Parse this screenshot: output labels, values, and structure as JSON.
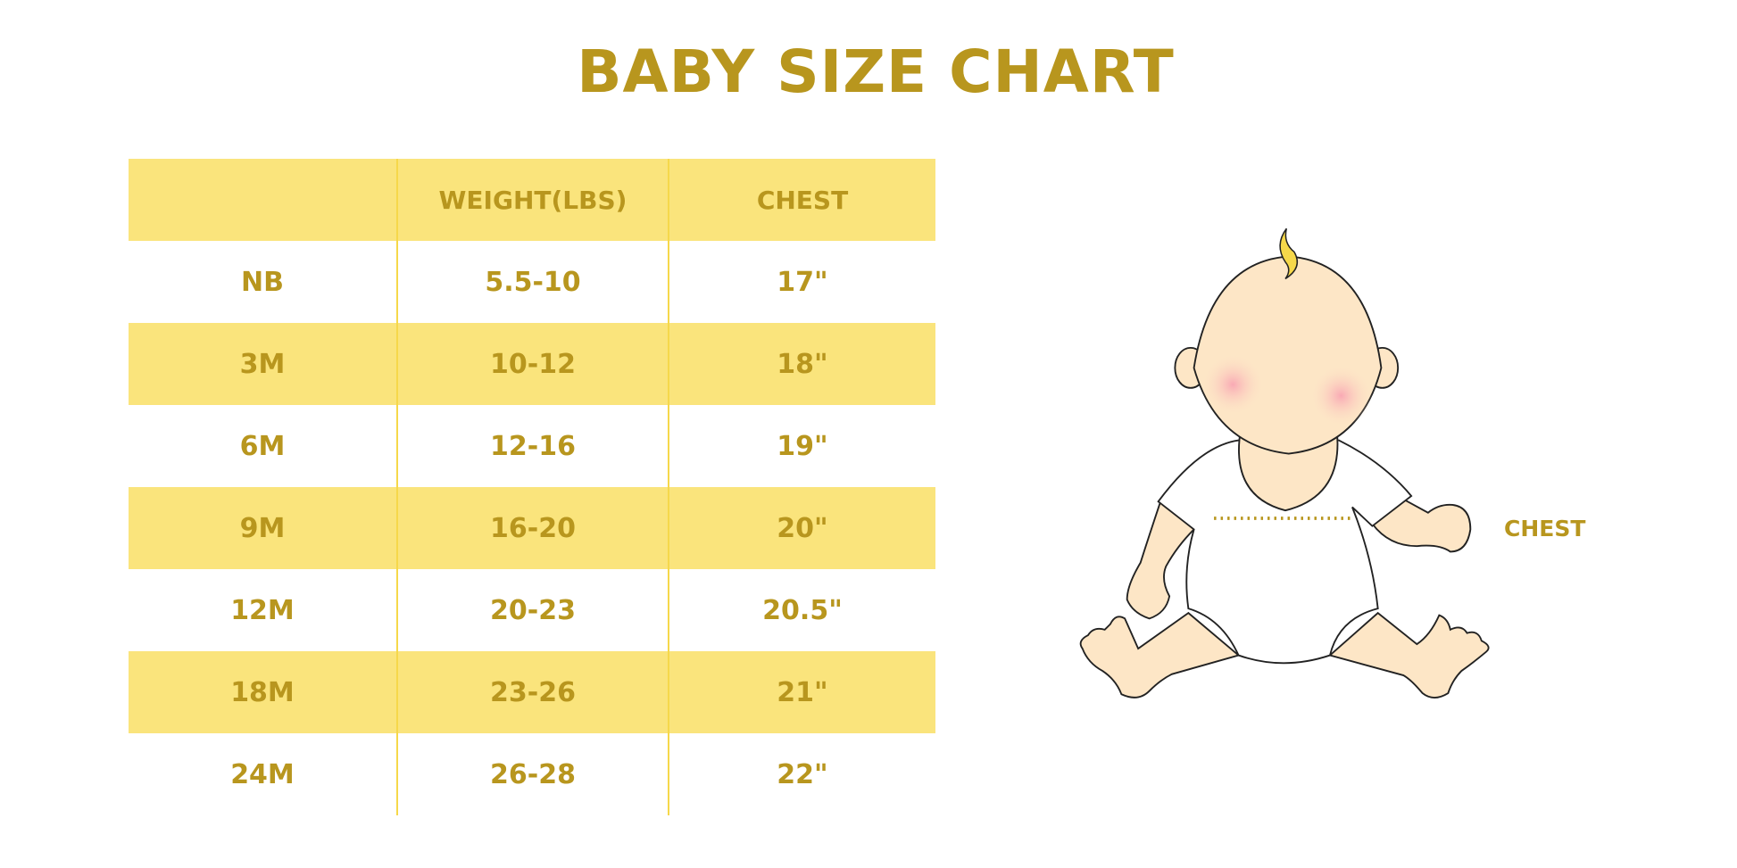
{
  "title": "BABY SIZE CHART",
  "colors": {
    "accent": "#b8961e",
    "row_highlight": "#fae47c"
  },
  "table": {
    "headers": [
      "",
      "WEIGHT(LBS)",
      "CHEST"
    ],
    "rows": [
      [
        "NB",
        "5.5-10",
        "17\""
      ],
      [
        "3M",
        "10-12",
        "18\""
      ],
      [
        "6M",
        "12-16",
        "19\""
      ],
      [
        "9M",
        "16-20",
        "20\""
      ],
      [
        "12M",
        "20-23",
        "20.5\""
      ],
      [
        "18M",
        "23-26",
        "21\""
      ],
      [
        "24M",
        "26-28",
        "22\""
      ]
    ]
  },
  "illustration": {
    "chest_label": "CHEST"
  }
}
